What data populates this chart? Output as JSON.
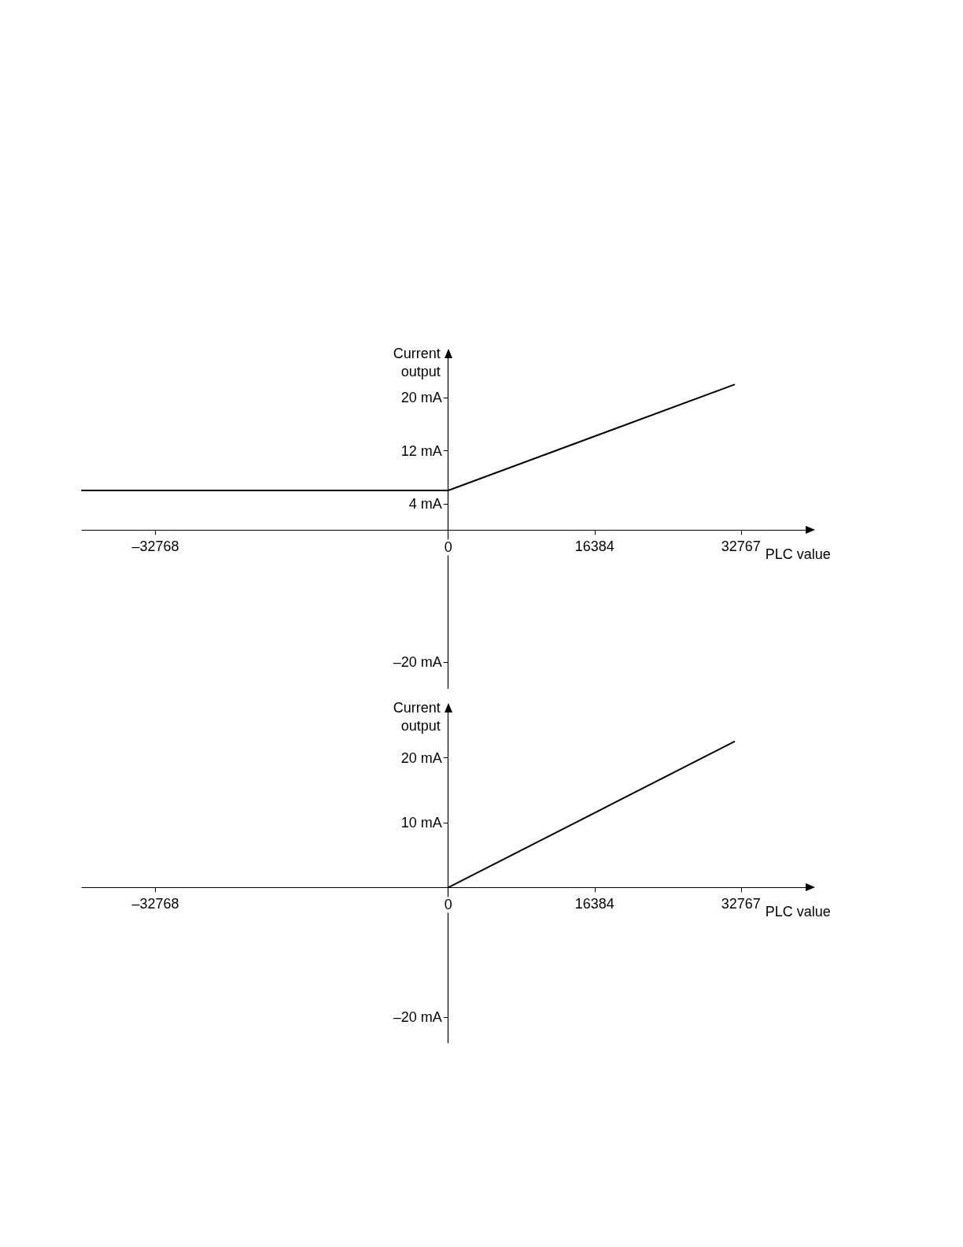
{
  "chart_data": [
    {
      "type": "line",
      "ylabel": "Current\noutput",
      "xlabel": "PLC value",
      "x": [
        -41000,
        0,
        32000
      ],
      "series": [
        {
          "color": "#000000",
          "values": [
            6,
            6,
            22
          ]
        }
      ],
      "xlim": [
        -41000,
        40000
      ],
      "ylim": [
        -24,
        26
      ],
      "xticks": [
        {
          "value": -32768,
          "label": "–32768"
        },
        0,
        16384,
        32767
      ],
      "yticks": [
        {
          "value": -20,
          "label": "–20 mA"
        },
        {
          "value": 4,
          "label": "4 mA"
        },
        {
          "value": 12,
          "label": "12 mA"
        },
        {
          "value": 20,
          "label": "20 mA"
        }
      ],
      "grid": false,
      "marker": "none",
      "line_style": "solid"
    },
    {
      "type": "line",
      "ylabel": "Current\noutput",
      "xlabel": "PLC value",
      "x": [
        0,
        32000
      ],
      "series": [
        {
          "color": "#000000",
          "values": [
            0,
            22.5
          ]
        }
      ],
      "xlim": [
        -41000,
        40000
      ],
      "ylim": [
        -24,
        27
      ],
      "xticks": [
        {
          "value": -32768,
          "label": "–32768"
        },
        0,
        16384,
        32767
      ],
      "yticks": [
        {
          "value": -20,
          "label": "–20 mA"
        },
        {
          "value": 10,
          "label": "10 mA"
        },
        {
          "value": 20,
          "label": "20 mA"
        }
      ],
      "grid": false,
      "marker": "none",
      "line_style": "solid"
    }
  ]
}
